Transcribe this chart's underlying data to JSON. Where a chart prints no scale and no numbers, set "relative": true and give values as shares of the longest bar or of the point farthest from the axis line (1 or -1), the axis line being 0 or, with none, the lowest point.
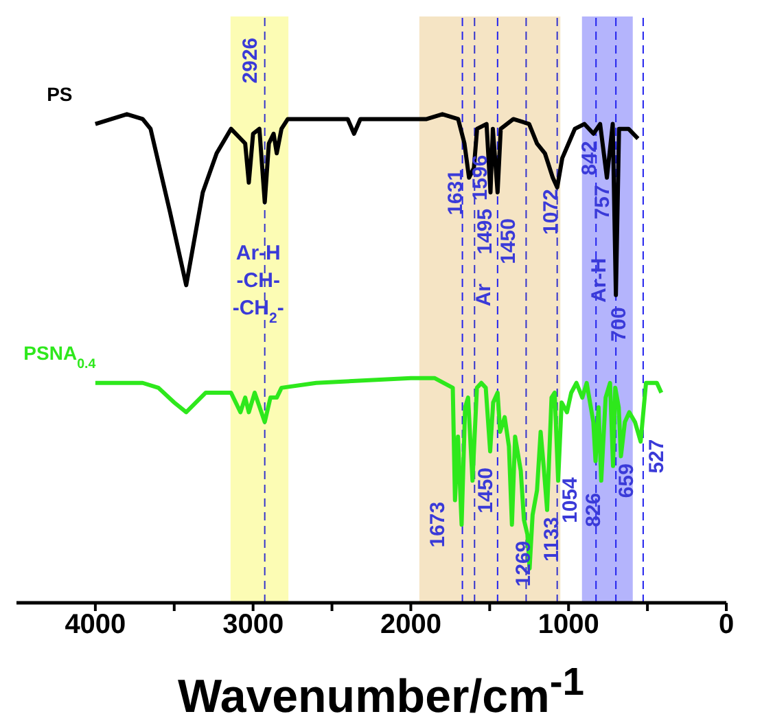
{
  "chart_data": {
    "type": "line",
    "relative": true,
    "xlabel": "Wavenumber/cm$^{-1}$",
    "xlim": [
      4500,
      0
    ],
    "xticks": [
      4000,
      {
        "value": 3500,
        "label": null
      },
      3000,
      {
        "value": 2500,
        "label": null
      },
      2000,
      {
        "value": 1500,
        "label": null
      },
      1000,
      {
        "value": 500,
        "label": null
      },
      0
    ],
    "legend": false,
    "grid": false,
    "marker": "none",
    "line_style": "solid",
    "tick_labels": "x",
    "series": [
      {
        "name": "PS",
        "color": "#000000",
        "x": [
          4000,
          3800,
          3700,
          3650,
          3527,
          3424,
          3319,
          3231,
          3140,
          3050,
          3027,
          3000,
          2960,
          2926,
          2900,
          2870,
          2850,
          2820,
          2780,
          2400,
          2360,
          2320,
          2000,
          1900,
          1800,
          1700,
          1660,
          1631,
          1600,
          1580,
          1520,
          1495,
          1480,
          1450,
          1430,
          1350,
          1250,
          1200,
          1150,
          1100,
          1072,
          1040,
          1000,
          960,
          900,
          842,
          800,
          757,
          720,
          700,
          680,
          620,
          560
        ],
        "values": [
          0.98,
          1.0,
          0.99,
          0.97,
          0.8,
          0.65,
          0.84,
          0.92,
          0.97,
          0.94,
          0.86,
          0.96,
          0.97,
          0.82,
          0.94,
          0.96,
          0.92,
          0.97,
          0.99,
          0.99,
          0.96,
          0.99,
          0.99,
          0.99,
          1.0,
          0.99,
          0.94,
          0.87,
          0.89,
          0.97,
          0.98,
          0.84,
          0.97,
          0.84,
          0.97,
          0.99,
          0.98,
          0.94,
          0.92,
          0.87,
          0.85,
          0.91,
          0.94,
          0.97,
          0.98,
          0.96,
          0.98,
          0.87,
          0.98,
          0.63,
          0.97,
          0.97,
          0.95
        ]
      },
      {
        "name": "PSNA$_{0.4}$",
        "color": "#2ee81c",
        "x": [
          4000,
          3700,
          3600,
          3500,
          3424,
          3300,
          3200,
          3140,
          3080,
          3050,
          3027,
          2990,
          2926,
          2890,
          2850,
          2820,
          2600,
          2000,
          1850,
          1734,
          1720,
          1701,
          1678,
          1656,
          1637,
          1609,
          1581,
          1553,
          1525,
          1497,
          1478,
          1450,
          1434,
          1405,
          1378,
          1359,
          1339,
          1303,
          1283,
          1261,
          1247,
          1228,
          1200,
          1177,
          1158,
          1136,
          1108,
          1088,
          1066,
          1044,
          1010,
          983,
          950,
          913,
          885,
          843,
          829,
          810,
          793,
          765,
          737,
          718,
          704,
          682,
          668,
          643,
          615,
          579,
          543,
          509,
          440,
          412
        ],
        "values": [
          0.45,
          0.45,
          0.44,
          0.41,
          0.39,
          0.43,
          0.43,
          0.43,
          0.39,
          0.42,
          0.39,
          0.43,
          0.37,
          0.42,
          0.42,
          0.44,
          0.45,
          0.46,
          0.46,
          0.44,
          0.21,
          0.34,
          0.16,
          0.4,
          0.42,
          0.25,
          0.44,
          0.45,
          0.44,
          0.31,
          0.41,
          0.43,
          0.35,
          0.38,
          0.32,
          0.16,
          0.34,
          0.27,
          0.17,
          0.14,
          0.07,
          0.18,
          0.23,
          0.35,
          0.28,
          0.19,
          0.42,
          0.43,
          0.25,
          0.41,
          0.39,
          0.43,
          0.45,
          0.42,
          0.45,
          0.37,
          0.29,
          0.4,
          0.25,
          0.42,
          0.45,
          0.28,
          0.44,
          0.4,
          0.3,
          0.37,
          0.39,
          0.37,
          0.33,
          0.45,
          0.45,
          0.43
        ]
      }
    ],
    "bands": [
      {
        "axis": "x",
        "from": 3143,
        "to": 2776,
        "color": "#fcfcb4"
      },
      {
        "axis": "x",
        "from": 1946,
        "to": 1052,
        "color": "#f5e4c4"
      },
      {
        "axis": "x",
        "from": 915,
        "to": 593,
        "color": "#b4b4fc"
      }
    ],
    "ref_lines": [
      {
        "axis": "x",
        "value": 2926,
        "color": "#3333cc",
        "line_style": "dashed"
      },
      {
        "axis": "x",
        "value": 1673,
        "color": "#2222ee",
        "line_style": "dashed"
      },
      {
        "axis": "x",
        "value": 1596,
        "color": "#3333cc",
        "line_style": "dashed"
      },
      {
        "axis": "x",
        "value": 1450,
        "color": "#2222ee",
        "line_style": "dashed"
      },
      {
        "axis": "x",
        "value": 1269,
        "color": "#3333cc",
        "line_style": "dashed"
      },
      {
        "axis": "x",
        "value": 1072,
        "color": "#3333cc",
        "line_style": "dashed"
      },
      {
        "axis": "x",
        "value": 826,
        "color": "#2222ee",
        "line_style": "dashed"
      },
      {
        "axis": "x",
        "value": 700,
        "color": "#2222ee",
        "line_style": "dashed"
      },
      {
        "axis": "x",
        "value": 527,
        "color": "#2222ee",
        "line_style": "dashed"
      }
    ],
    "annotations": [
      "2926",
      "Ar-H\n-CH-\n-CH$_{2}$-",
      "1631",
      "1596",
      "1495",
      "Ar",
      "1450",
      "1072",
      "842",
      "757",
      "Ar-H",
      "700",
      "1673",
      "1450",
      "1269",
      "1133",
      "1054",
      "826",
      "659",
      "527"
    ]
  }
}
